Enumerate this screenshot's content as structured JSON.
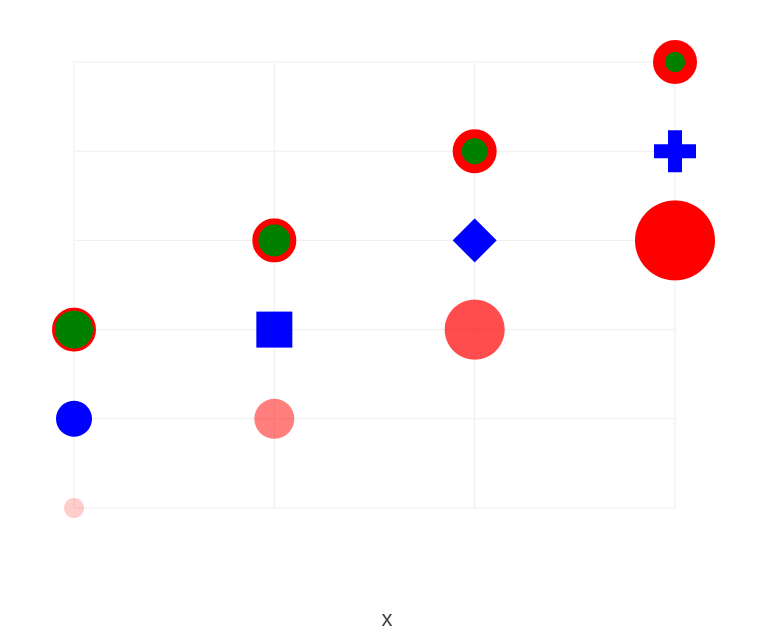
{
  "chart_data": {
    "type": "scatter",
    "xlabel": "x",
    "ylabel": "",
    "title": "",
    "x": [
      1,
      2,
      3,
      4
    ],
    "xlim": [
      1,
      4
    ],
    "ylim": [
      1,
      6
    ],
    "grid": true,
    "legend": "none",
    "series": [
      {
        "marker": "circle",
        "color": "#ff0000",
        "opacity": [
          0.2,
          0.5,
          0.7,
          1.0
        ],
        "size": [
          1,
          2,
          3,
          4
        ],
        "y": [
          1,
          2,
          3,
          4
        ]
      },
      {
        "marker": [
          "circle",
          "square",
          "diamond",
          "cross"
        ],
        "color": "#0000ff",
        "y": [
          2,
          3,
          4,
          5
        ]
      },
      {
        "marker": "circle",
        "color": "#008000",
        "line_color": "#ff0000",
        "line_width": [
          1,
          2,
          3,
          4
        ],
        "y": [
          3,
          4,
          5,
          6
        ]
      }
    ]
  }
}
